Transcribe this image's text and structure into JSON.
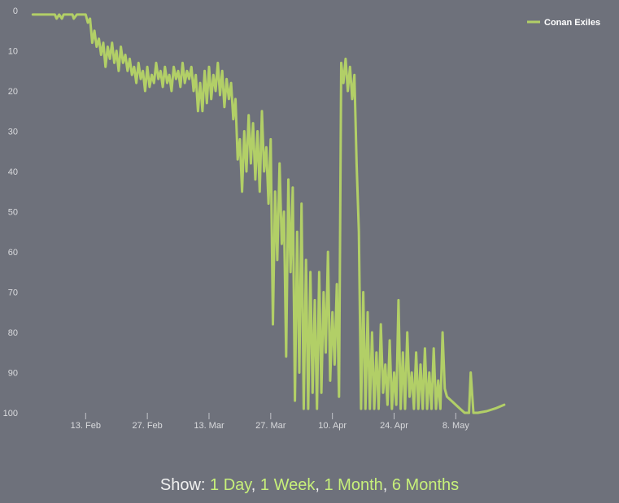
{
  "chart_data": {
    "type": "line",
    "title": "",
    "xlabel": "",
    "ylabel": "",
    "ylim": [
      0,
      100
    ],
    "y_reversed": true,
    "y_ticks": [
      "0",
      "10",
      "20",
      "30",
      "40",
      "50",
      "60",
      "70",
      "80",
      "90",
      "100"
    ],
    "x_ticks": [
      "13. Feb",
      "27. Feb",
      "13. Mar",
      "27. Mar",
      "10. Apr",
      "24. Apr",
      "8. May"
    ],
    "x_tick_days": [
      13,
      27,
      41,
      55,
      69,
      83,
      97
    ],
    "x_unit": "days from 1 Feb",
    "legend": {
      "position": "top-right",
      "entries": [
        "Conan Exiles"
      ]
    },
    "grid": false,
    "series": [
      {
        "name": "Conan Exiles",
        "color": "#b2cf67",
        "x": [
          1,
          4,
          6,
          6.4,
          7,
          7.6,
          8,
          10,
          10.3,
          11,
          11.6,
          12,
          13,
          13.5,
          14,
          14.5,
          15,
          15.5,
          16,
          16.5,
          17,
          17.5,
          18,
          18.5,
          19,
          19.5,
          20,
          20.5,
          21,
          21.5,
          22,
          22.5,
          23,
          23.5,
          24,
          24.5,
          25,
          25.5,
          26,
          26.5,
          27,
          27.5,
          28,
          28.5,
          29,
          29.5,
          30,
          30.5,
          31,
          31.5,
          32,
          32.5,
          33,
          33.5,
          34,
          34.5,
          35,
          35.5,
          36,
          36.5,
          37,
          37.5,
          38,
          38.5,
          39,
          39.5,
          40,
          40.5,
          41,
          41.5,
          42,
          42.5,
          43,
          43.5,
          44,
          44.5,
          45,
          45.5,
          46,
          46.5,
          47,
          47.5,
          48,
          48.5,
          49,
          49.5,
          50,
          50.5,
          51,
          51.5,
          52,
          52.5,
          53,
          53.5,
          54,
          54.5,
          55,
          55.5,
          56,
          56.5,
          57,
          57.5,
          58,
          58.5,
          59,
          59.5,
          60,
          60.5,
          61,
          61.5,
          62,
          62.5,
          63,
          63.5,
          64,
          64.5,
          65,
          65.5,
          66,
          66.5,
          67,
          67.5,
          68,
          68.5,
          69,
          69.5,
          70,
          70.5,
          71,
          71.5,
          72,
          72.5,
          73,
          73.5,
          74,
          74.5,
          75,
          75.5,
          76,
          76.5,
          77,
          77.5,
          78,
          78.5,
          79,
          79.5,
          80,
          80.5,
          81,
          81.5,
          82,
          82.5,
          83,
          83.5,
          84,
          84.5,
          85,
          85.5,
          86,
          86.5,
          87,
          87.5,
          88,
          88.5,
          89,
          89.5,
          90,
          90.5,
          91,
          91.5,
          92,
          92.5,
          93,
          93.5,
          94,
          94.5,
          95,
          96,
          97,
          98,
          99,
          100,
          100.4,
          101,
          102,
          104,
          106,
          108
        ],
        "values": [
          1,
          1,
          1,
          2,
          1,
          2,
          1,
          1,
          2,
          1,
          1,
          1,
          1,
          3,
          2,
          8,
          5,
          9,
          7,
          11,
          8,
          14,
          9,
          12,
          8,
          13,
          10,
          15,
          9,
          13,
          11,
          15,
          12,
          16,
          14,
          18,
          13,
          17,
          15,
          20,
          14,
          19,
          16,
          18,
          13,
          17,
          15,
          19,
          14,
          18,
          16,
          20,
          14,
          17,
          15,
          19,
          13,
          18,
          15,
          17,
          14,
          20,
          16,
          25,
          18,
          25,
          15,
          23,
          14,
          22,
          16,
          20,
          13,
          21,
          15,
          24,
          17,
          22,
          18,
          27,
          22,
          37,
          32,
          45,
          30,
          40,
          26,
          38,
          28,
          42,
          30,
          45,
          25,
          40,
          34,
          48,
          32,
          78,
          45,
          62,
          38,
          58,
          50,
          86,
          42,
          65,
          44,
          97,
          55,
          90,
          48,
          99,
          62,
          99,
          65,
          95,
          72,
          99,
          65,
          95,
          70,
          85,
          60,
          92,
          75,
          88,
          68,
          96,
          13,
          18,
          12,
          20,
          14,
          22,
          16,
          38,
          55,
          99,
          70,
          99,
          75,
          99,
          80,
          99,
          85,
          99,
          78,
          95,
          88,
          98,
          82,
          99,
          90,
          98,
          72,
          99,
          85,
          99,
          80,
          96,
          90,
          99,
          85,
          99,
          88,
          99,
          84,
          99,
          90,
          99,
          84,
          99,
          92,
          99,
          80,
          94,
          96,
          97,
          98,
          99,
          100,
          100,
          90,
          100,
          100,
          99.6,
          98.9,
          98
        ]
      }
    ]
  },
  "show_bar": {
    "prefix": "Show: ",
    "options": [
      "1 Day",
      "1 Week",
      "1 Month",
      "6 Months"
    ],
    "separator": ", "
  }
}
